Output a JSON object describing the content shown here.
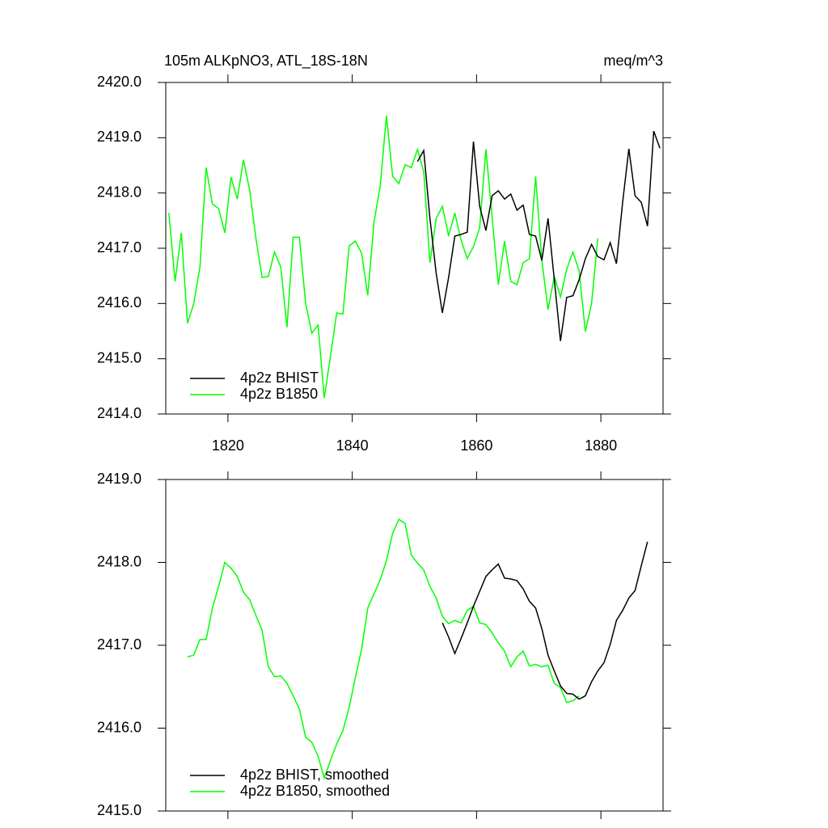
{
  "chart_data": [
    {
      "type": "line",
      "title": "105m ALKpNO3, ATL_18S-18N",
      "units": "meq/m^3",
      "xlim": [
        1810,
        1890
      ],
      "xticks": [
        1820,
        1840,
        1860,
        1880
      ],
      "xtick_labels": true,
      "ylim": [
        2414,
        2420
      ],
      "yticks": [
        {
          "value": 2414,
          "label": "2414.0"
        },
        {
          "value": 2415,
          "label": "2415.0"
        },
        {
          "value": 2416,
          "label": "2416.0"
        },
        {
          "value": 2417,
          "label": "2417.0"
        },
        {
          "value": 2418,
          "label": "2418.0"
        },
        {
          "value": 2419,
          "label": "2419.0"
        },
        {
          "value": 2420,
          "label": "2420.0"
        }
      ],
      "legend": "lower left",
      "series": [
        {
          "name": "4p2z BHIST",
          "color": "#000000",
          "x": [
            1850.5,
            1851.5,
            1852.5,
            1853.5,
            1854.5,
            1855.5,
            1856.5,
            1857.5,
            1858.5,
            1859.5,
            1860.5,
            1861.5,
            1862.5,
            1863.5,
            1864.5,
            1865.5,
            1866.5,
            1867.5,
            1868.5,
            1869.5,
            1870.5,
            1871.5,
            1872.5,
            1873.5,
            1874.5,
            1875.5,
            1876.5,
            1877.5,
            1878.5,
            1879.5,
            1880.5,
            1881.5,
            1882.5,
            1883.5,
            1884.5,
            1885.5,
            1886.5,
            1887.5,
            1888.5,
            1889.5
          ],
          "values": [
            2418.57,
            2418.77,
            2417.54,
            2416.55,
            2415.83,
            2416.47,
            2417.22,
            2417.25,
            2417.29,
            2418.93,
            2417.76,
            2417.32,
            2417.95,
            2418.04,
            2417.89,
            2417.98,
            2417.69,
            2417.78,
            2417.25,
            2417.22,
            2416.78,
            2417.54,
            2416.44,
            2415.32,
            2416.11,
            2416.14,
            2416.43,
            2416.81,
            2417.07,
            2416.85,
            2416.79,
            2417.1,
            2416.72,
            2417.83,
            2418.8,
            2417.95,
            2417.83,
            2417.4,
            2419.12,
            2418.81
          ]
        },
        {
          "name": "4p2z B1850",
          "color": "#00ff00",
          "x": [
            1810.5,
            1811.5,
            1812.5,
            1813.5,
            1814.5,
            1815.5,
            1816.5,
            1817.5,
            1818.5,
            1819.5,
            1820.5,
            1821.5,
            1822.5,
            1823.5,
            1824.5,
            1825.5,
            1826.5,
            1827.5,
            1828.5,
            1829.5,
            1830.5,
            1831.5,
            1832.5,
            1833.5,
            1834.5,
            1835.5,
            1836.5,
            1837.5,
            1838.5,
            1839.5,
            1840.5,
            1841.5,
            1842.5,
            1843.5,
            1844.5,
            1845.5,
            1846.5,
            1847.5,
            1848.5,
            1849.5,
            1850.5,
            1851.5,
            1852.5,
            1853.5,
            1854.5,
            1855.5,
            1856.5,
            1857.5,
            1858.5,
            1859.5,
            1860.5,
            1861.5,
            1862.5,
            1863.5,
            1864.5,
            1865.5,
            1866.5,
            1867.5,
            1868.5,
            1869.5,
            1870.5,
            1871.5,
            1872.5,
            1873.5,
            1874.5,
            1875.5,
            1876.5,
            1877.5,
            1878.5,
            1879.5
          ],
          "values": [
            2417.64,
            2416.4,
            2417.28,
            2415.64,
            2416.0,
            2416.66,
            2418.46,
            2417.8,
            2417.72,
            2417.28,
            2418.29,
            2417.89,
            2418.6,
            2418.05,
            2417.18,
            2416.47,
            2416.49,
            2416.93,
            2416.66,
            2415.57,
            2417.2,
            2417.2,
            2416.0,
            2415.46,
            2415.61,
            2414.29,
            2415.05,
            2415.83,
            2415.81,
            2417.04,
            2417.13,
            2416.91,
            2416.15,
            2417.47,
            2418.13,
            2419.4,
            2418.3,
            2418.17,
            2418.51,
            2418.46,
            2418.79,
            2418.38,
            2416.74,
            2417.54,
            2417.76,
            2417.22,
            2417.64,
            2417.15,
            2416.81,
            2417.03,
            2417.37,
            2418.79,
            2417.57,
            2416.34,
            2417.13,
            2416.4,
            2416.34,
            2416.74,
            2416.81,
            2418.3,
            2416.78,
            2415.89,
            2416.49,
            2416.12,
            2416.62,
            2416.93,
            2416.59,
            2415.49,
            2416.0,
            2417.18
          ]
        }
      ]
    },
    {
      "type": "line",
      "xlim": [
        1810,
        1890
      ],
      "xticks": [
        1820,
        1840,
        1860,
        1880
      ],
      "xtick_labels": false,
      "ylim": [
        2415,
        2419
      ],
      "yticks": [
        {
          "value": 2415,
          "label": "2415.0"
        },
        {
          "value": 2416,
          "label": "2416.0"
        },
        {
          "value": 2417,
          "label": "2417.0"
        },
        {
          "value": 2418,
          "label": "2418.0"
        },
        {
          "value": 2419,
          "label": "2419.0"
        }
      ],
      "legend": "lower left",
      "series": [
        {
          "name": "4p2z BHIST, smoothed",
          "color": "#000000",
          "x": [
            1854.5,
            1855.5,
            1856.5,
            1857.5,
            1858.5,
            1859.5,
            1860.5,
            1861.5,
            1862.5,
            1863.5,
            1864.5,
            1865.5,
            1866.5,
            1867.5,
            1868.5,
            1869.5,
            1870.5,
            1871.5,
            1872.5,
            1873.5,
            1874.5,
            1875.5,
            1876.5,
            1877.5,
            1878.5,
            1879.5,
            1880.5,
            1881.5,
            1882.5,
            1883.5,
            1884.5,
            1885.5,
            1886.5,
            1887.5
          ],
          "values": [
            2417.27,
            2417.1,
            2416.9,
            2417.08,
            2417.27,
            2417.47,
            2417.65,
            2417.83,
            2417.91,
            2417.98,
            2417.81,
            2417.8,
            2417.78,
            2417.68,
            2417.53,
            2417.45,
            2417.2,
            2416.88,
            2416.69,
            2416.51,
            2416.42,
            2416.41,
            2416.35,
            2416.39,
            2416.56,
            2416.69,
            2416.79,
            2417.01,
            2417.3,
            2417.42,
            2417.57,
            2417.66,
            2417.96,
            2418.25
          ]
        },
        {
          "name": "4p2z B1850, smoothed",
          "color": "#00ff00",
          "x": [
            1813.5,
            1814.5,
            1815.5,
            1816.5,
            1817.5,
            1818.5,
            1819.5,
            1820.5,
            1821.5,
            1822.5,
            1823.5,
            1824.5,
            1825.5,
            1826.5,
            1827.5,
            1828.5,
            1829.5,
            1830.5,
            1831.5,
            1832.5,
            1833.5,
            1834.5,
            1835.5,
            1836.5,
            1837.5,
            1838.5,
            1839.5,
            1840.5,
            1841.5,
            1842.5,
            1843.5,
            1844.5,
            1845.5,
            1846.5,
            1847.5,
            1848.5,
            1849.5,
            1850.5,
            1851.5,
            1852.5,
            1853.5,
            1854.5,
            1855.5,
            1856.5,
            1857.5,
            1858.5,
            1859.5,
            1860.5,
            1861.5,
            1862.5,
            1863.5,
            1864.5,
            1865.5,
            1866.5,
            1867.5,
            1868.5,
            1869.5,
            1870.5,
            1871.5,
            1872.5,
            1873.5,
            1874.5,
            1875.5,
            1876.5
          ],
          "values": [
            2416.86,
            2416.88,
            2417.07,
            2417.07,
            2417.45,
            2417.71,
            2418.0,
            2417.93,
            2417.83,
            2417.64,
            2417.55,
            2417.36,
            2417.18,
            2416.74,
            2416.62,
            2416.63,
            2416.54,
            2416.39,
            2416.23,
            2415.89,
            2415.83,
            2415.66,
            2415.4,
            2415.61,
            2415.81,
            2415.97,
            2416.25,
            2416.61,
            2416.95,
            2417.45,
            2417.62,
            2417.79,
            2418.02,
            2418.35,
            2418.52,
            2418.47,
            2418.09,
            2417.99,
            2417.91,
            2417.71,
            2417.57,
            2417.35,
            2417.26,
            2417.3,
            2417.27,
            2417.42,
            2417.47,
            2417.27,
            2417.25,
            2417.15,
            2417.03,
            2416.93,
            2416.74,
            2416.86,
            2416.93,
            2416.75,
            2416.77,
            2416.74,
            2416.76,
            2416.54,
            2416.49,
            2416.31,
            2416.33,
            2416.39
          ]
        }
      ]
    }
  ]
}
